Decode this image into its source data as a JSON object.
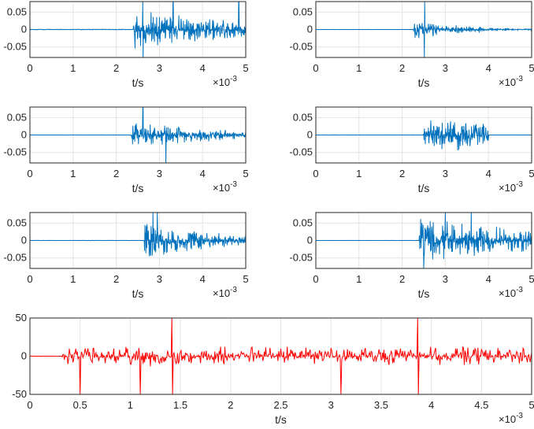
{
  "chart_data": [
    {
      "type": "line",
      "series_color": "#0072BD",
      "onset": 2.4,
      "end": 5.0,
      "amp": 0.06,
      "decay": 0.35,
      "spikes": [
        2.62,
        3.32,
        4.84
      ],
      "xlim": [
        0,
        5
      ],
      "ylim": [
        -0.08,
        0.08
      ],
      "xticks": [
        "0",
        "1",
        "2",
        "3",
        "4",
        "5"
      ],
      "yticks": [
        "0.05",
        "0",
        "-0.05"
      ],
      "xlabel": "t/s",
      "exponent_base": "×10",
      "exponent": "-3"
    },
    {
      "type": "line",
      "series_color": "#0072BD",
      "onset": 2.25,
      "end": 5.0,
      "amp": 0.03,
      "decay": 0.9,
      "spikes": [
        2.52
      ],
      "xlim": [
        0,
        5
      ],
      "ylim": [
        -0.08,
        0.08
      ],
      "xticks": [
        "0",
        "1",
        "2",
        "3",
        "4",
        "5"
      ],
      "yticks": [
        "0.05",
        "0",
        "-0.05"
      ],
      "xlabel": "t/s",
      "exponent_base": "×10",
      "exponent": "-3"
    },
    {
      "type": "line",
      "series_color": "#0072BD",
      "onset": 2.35,
      "end": 5.0,
      "amp": 0.045,
      "decay": 0.5,
      "spikes": [
        2.62,
        3.15
      ],
      "xlim": [
        0,
        5
      ],
      "ylim": [
        -0.08,
        0.08
      ],
      "xticks": [
        "0",
        "1",
        "2",
        "3",
        "4",
        "5"
      ],
      "yticks": [
        "0.05",
        "0",
        "-0.05"
      ],
      "xlabel": "t/s",
      "exponent_base": "×10",
      "exponent": "-3"
    },
    {
      "type": "line",
      "series_color": "#0072BD",
      "onset": 2.5,
      "end": 4.0,
      "amp": 0.045,
      "decay": 0.0,
      "spikes": [],
      "xlim": [
        0,
        5
      ],
      "ylim": [
        -0.08,
        0.08
      ],
      "xticks": [
        "0",
        "1",
        "2",
        "3",
        "4",
        "5"
      ],
      "yticks": [
        "0.05",
        "0",
        "-0.05"
      ],
      "xlabel": "t/s",
      "exponent_base": "×10",
      "exponent": "-3"
    },
    {
      "type": "line",
      "series_color": "#0072BD",
      "onset": 2.65,
      "end": 5.0,
      "amp": 0.06,
      "decay": 0.55,
      "spikes": [
        2.85,
        2.95
      ],
      "xlim": [
        0,
        5
      ],
      "ylim": [
        -0.08,
        0.08
      ],
      "xticks": [
        "0",
        "1",
        "2",
        "3",
        "4",
        "5"
      ],
      "yticks": [
        "0.05",
        "0",
        "-0.05"
      ],
      "xlabel": "t/s",
      "exponent_base": "×10",
      "exponent": "-3"
    },
    {
      "type": "line",
      "series_color": "#0072BD",
      "onset": 2.4,
      "end": 5.0,
      "amp": 0.07,
      "decay": 0.3,
      "spikes": [
        2.5,
        3.0,
        3.6
      ],
      "xlim": [
        0,
        5
      ],
      "ylim": [
        -0.08,
        0.08
      ],
      "xticks": [
        "0",
        "1",
        "2",
        "3",
        "4",
        "5"
      ],
      "yticks": [
        "0.05",
        "0",
        "-0.05"
      ],
      "xlabel": "t/s",
      "exponent_base": "×10",
      "exponent": "-3"
    },
    {
      "type": "line",
      "series_color": "#FF0000",
      "onset": 0.32,
      "end": 5.0,
      "amp": 15,
      "decay": 0.05,
      "spikes": [
        0.5,
        1.1,
        1.42,
        3.1,
        3.87
      ],
      "xlim": [
        0,
        5
      ],
      "ylim": [
        -50,
        50
      ],
      "xticks": [
        "0",
        "0.5",
        "1",
        "1.5",
        "2",
        "2.5",
        "3",
        "3.5",
        "4",
        "4.5",
        "5"
      ],
      "yticks": [
        "50",
        "0",
        "-50"
      ],
      "xlabel": "t/s",
      "exponent_base": "×10",
      "exponent": "-3"
    }
  ]
}
